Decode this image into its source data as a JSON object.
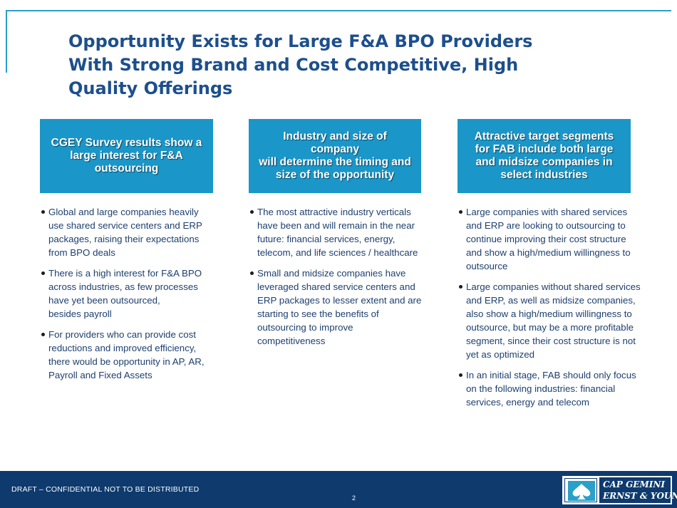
{
  "slide": {
    "title_lines": [
      "Opportunity Exists for Large F&A BPO Providers",
      "With Strong Brand and Cost Competitive, High",
      "Quality Offerings"
    ]
  },
  "columns": [
    {
      "header_lines": [
        "CGEY Survey results show a",
        "large interest for F&A",
        "outsourcing"
      ],
      "bullets": [
        [
          "Global and large companies heavily",
          "use shared service centers and ERP",
          "packages, raising their expectations",
          "from BPO deals"
        ],
        [
          "There is a high interest for F&A BPO",
          "across industries, as few processes",
          "have yet been outsourced,",
          "besides payroll"
        ],
        [
          "For providers who can provide cost",
          "reductions and improved efficiency,",
          "there would be opportunity in AP, AR,",
          "Payroll and Fixed Assets"
        ]
      ]
    },
    {
      "header_lines": [
        "Industry and size of company",
        "will determine the timing and",
        "size of the opportunity"
      ],
      "bullets": [
        [
          "The most attractive industry verticals",
          "have been and will remain in the near",
          "future: financial services, energy,",
          "telecom, and life sciences / healthcare"
        ],
        [
          "Small and midsize companies have",
          "leveraged shared service centers and",
          "ERP packages to lesser extent and are",
          "starting to see the  benefits of",
          "outsourcing to improve",
          "competitiveness"
        ]
      ]
    },
    {
      "header_lines": [
        "Attractive target segments",
        "for FAB include both large",
        "and midsize companies in",
        "select industries"
      ],
      "bullets": [
        [
          "Large companies with shared services",
          "and ERP are looking to outsourcing to",
          "continue improving their cost structure",
          "and show a high/medium willingness to",
          "outsource"
        ],
        [
          "Large companies without shared services",
          "and ERP, as well as midsize companies,",
          "also show a high/medium willingness to",
          "outsource, but may be a more profitable",
          "segment, since their cost structure is not",
          "yet as optimized"
        ],
        [
          "In an initial stage, FAB should only focus",
          "on the following industries: financial",
          "services, energy and telecom"
        ]
      ]
    }
  ],
  "footer": {
    "confidential": "DRAFT – CONFIDENTIAL NOT TO BE DISTRIBUTED",
    "page_number": "2",
    "logo_lines": [
      "CAP GEMINI",
      "ERNST & YOUNG"
    ]
  },
  "colors": {
    "title": "#1d4f8c",
    "header_box": "#1b96c8",
    "bullet_text": "#1d3f6e",
    "footer_bar": "#0e3a6e",
    "frame_line": "#2a9fc9"
  },
  "icons": {
    "logo_emblem": "spade-emblem-icon",
    "bullet": "bullet-dot"
  }
}
